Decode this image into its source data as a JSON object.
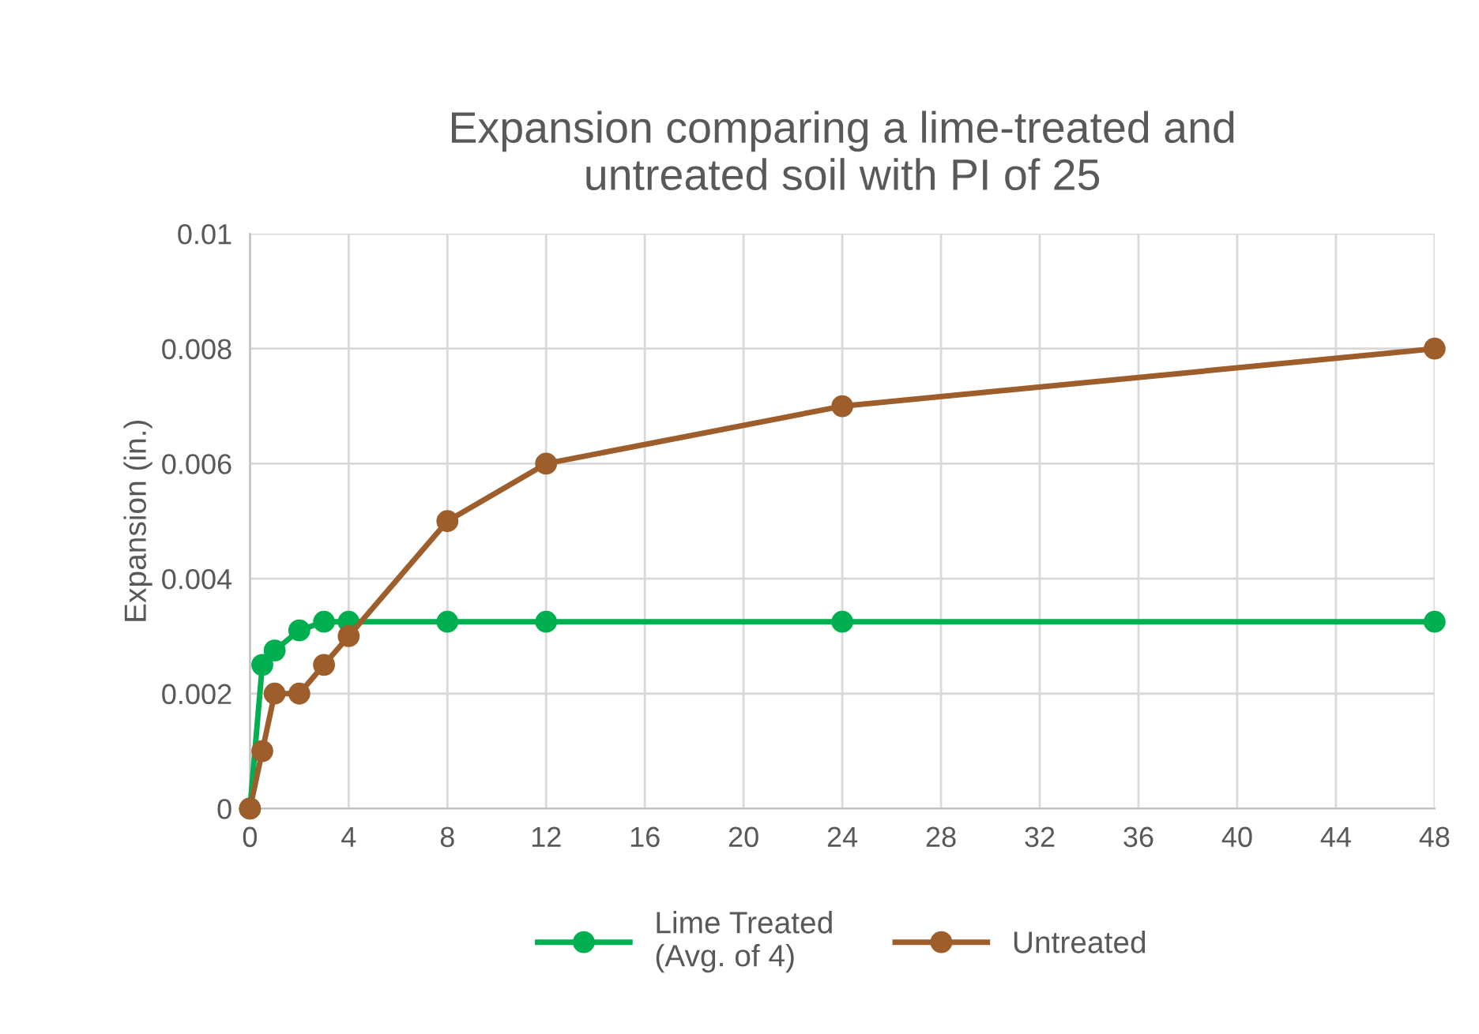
{
  "chart_data": {
    "type": "line",
    "title": "Expansion comparing a lime-treated and\nuntreated soil with PI of 25",
    "ylabel": "Expansion (in.)",
    "x": [
      0,
      0.5,
      1,
      2,
      3,
      4,
      8,
      12,
      24,
      48
    ],
    "series": [
      {
        "name": "Lime Treated\n(Avg. of 4)",
        "color": "#00b050",
        "values": [
          0,
          0.0025,
          0.00275,
          0.0031,
          0.00325,
          0.00325,
          0.00325,
          0.00325,
          0.00325,
          0.00325
        ]
      },
      {
        "name": "Untreated",
        "color": "#9e5e2b",
        "values": [
          0,
          0.001,
          0.002,
          0.002,
          0.0025,
          0.003,
          0.005,
          0.006,
          0.007,
          0.008
        ]
      }
    ],
    "xlim": [
      0,
      48
    ],
    "xticks": [
      0,
      4,
      8,
      12,
      16,
      20,
      24,
      28,
      32,
      36,
      40,
      44,
      48
    ],
    "ylim": [
      0,
      0.01
    ],
    "yticks": [
      0,
      0.002,
      0.004,
      0.006,
      0.008,
      0.01
    ],
    "grid": true,
    "legend": "bottom",
    "marker": "circle",
    "line_style": "solid"
  }
}
